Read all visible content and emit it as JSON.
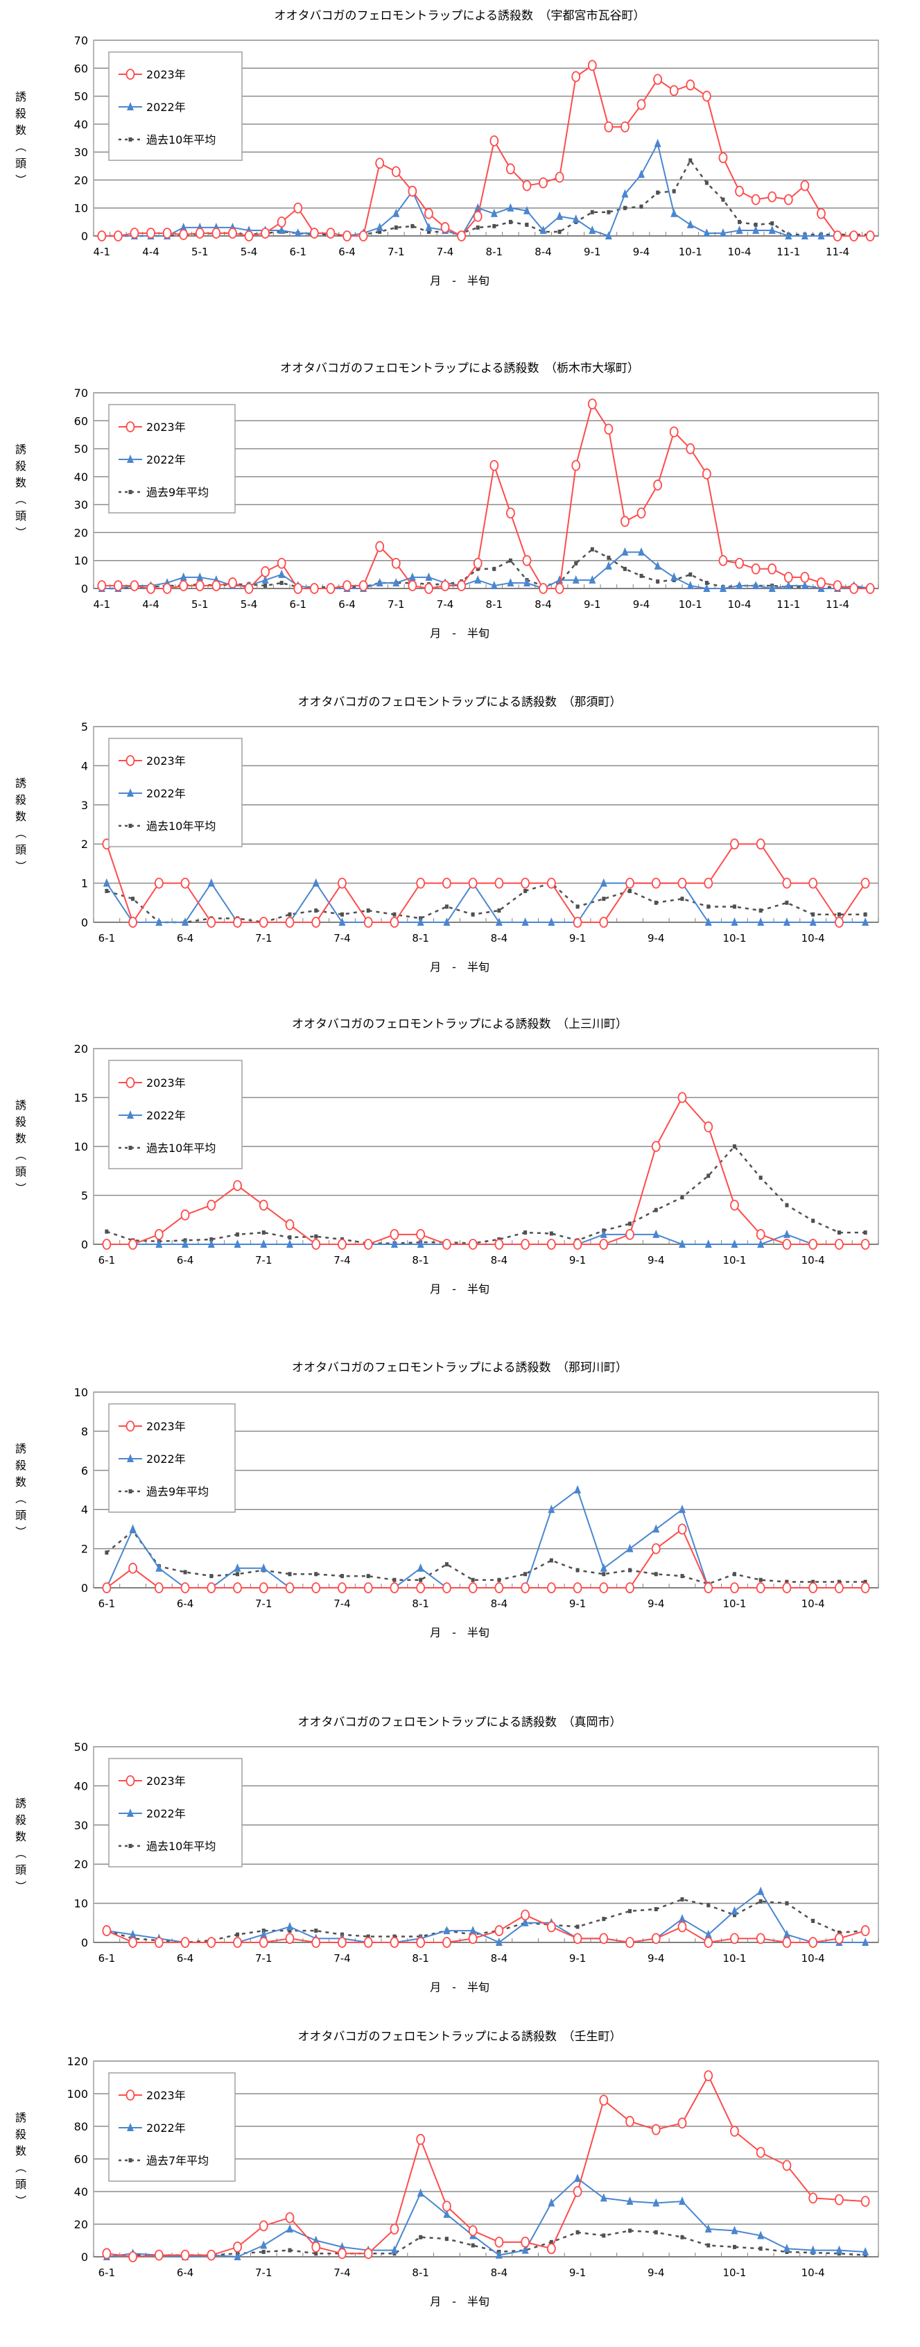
{
  "common": {
    "ylabel": "誘殺数（頭）",
    "xlabel": "月　-　半旬",
    "colors": {
      "y2023": "#ff4b4b",
      "y2022": "#4a86d0",
      "avg": "#505050",
      "grid": "#8c8c8c"
    }
  },
  "chart_data": [
    {
      "type": "line",
      "title": "オオタバコガのフェロモントラップによる誘殺数　（宇都宮市瓦谷町）",
      "xlabel": "月　-　半旬",
      "ylabel": "誘殺数（頭）",
      "ylim": [
        0,
        70
      ],
      "yticks": [
        0,
        10,
        20,
        30,
        40,
        50,
        60,
        70
      ],
      "legend_position": "top-left",
      "months": [
        4,
        5,
        6,
        7,
        8,
        9,
        10,
        11
      ],
      "tick_labels": [
        "4-1",
        "4-4",
        "5-1",
        "5-4",
        "6-1",
        "6-4",
        "7-1",
        "7-4",
        "8-1",
        "8-4",
        "9-1",
        "9-4",
        "10-1",
        "10-4",
        "11-1",
        "11-4"
      ],
      "series": [
        {
          "name": "2023年",
          "values": [
            0,
            0,
            1,
            1,
            1,
            0.5,
            1,
            1,
            1,
            0,
            1,
            5,
            10,
            1,
            1,
            0,
            0,
            26,
            23,
            16,
            8,
            3,
            0,
            7,
            34,
            24,
            18,
            19,
            21,
            57,
            61,
            39,
            39,
            47,
            56,
            52,
            54,
            50,
            28,
            16,
            13,
            14,
            13,
            18,
            8,
            0,
            0,
            0
          ]
        },
        {
          "name": "2022年",
          "values": [
            0,
            0,
            0,
            0,
            0,
            3,
            3,
            3,
            3,
            2,
            2,
            2,
            1,
            1,
            1,
            0,
            1,
            3,
            8,
            16,
            3,
            2,
            0,
            10,
            8,
            10,
            9,
            2,
            7,
            6,
            2,
            0,
            15,
            22,
            33,
            8,
            4,
            1,
            1,
            2,
            2,
            2,
            0,
            0,
            0,
            0,
            0,
            0
          ]
        },
        {
          "name": "過去10年平均",
          "values": [
            0,
            0,
            0,
            0,
            0,
            0.5,
            0.7,
            1,
            1,
            0.5,
            1,
            1.5,
            1,
            0.5,
            0.5,
            0,
            0.5,
            1.5,
            3,
            3.5,
            1.5,
            1.5,
            1,
            3,
            3.5,
            5,
            4,
            1.5,
            1.5,
            5,
            8.5,
            8.5,
            10,
            10.5,
            15.5,
            16,
            27,
            19,
            13,
            5,
            4,
            4.5,
            0.5,
            0.5,
            0.5,
            0.5,
            0.5,
            0.5
          ]
        }
      ]
    },
    {
      "type": "line",
      "title": "オオタバコガのフェロモントラップによる誘殺数　（栃木市大塚町）",
      "xlabel": "月　-　半旬",
      "ylabel": "誘殺数（頭）",
      "ylim": [
        0,
        70
      ],
      "yticks": [
        0,
        10,
        20,
        30,
        40,
        50,
        60,
        70
      ],
      "legend_position": "top-left",
      "months": [
        4,
        5,
        6,
        7,
        8,
        9,
        10,
        11
      ],
      "tick_labels": [
        "4-1",
        "4-4",
        "5-1",
        "5-4",
        "6-1",
        "6-4",
        "7-1",
        "7-4",
        "8-1",
        "8-4",
        "9-1",
        "9-4",
        "10-1",
        "10-4",
        "11-1",
        "11-4"
      ],
      "series": [
        {
          "name": "2023年",
          "values": [
            1,
            1,
            1,
            0,
            0,
            1,
            1,
            1,
            2,
            0,
            6,
            9,
            0,
            0,
            0,
            1,
            1,
            15,
            9,
            1,
            0,
            1,
            1,
            9,
            44,
            27,
            10,
            0,
            0,
            44,
            66,
            57,
            24,
            27,
            37,
            56,
            50,
            41,
            10,
            9,
            7,
            7,
            4,
            4,
            2,
            1,
            0,
            0
          ]
        },
        {
          "name": "2022年",
          "values": [
            0,
            0,
            1,
            1,
            2,
            4,
            4,
            3,
            1,
            1,
            3,
            5,
            1,
            0,
            0,
            0,
            0,
            2,
            2,
            4,
            4,
            2,
            1,
            3,
            1,
            2,
            2,
            0,
            3,
            3,
            3,
            8,
            13,
            13,
            8,
            4,
            1,
            0,
            0,
            1,
            1,
            0,
            1,
            1,
            0,
            0,
            1,
            0
          ]
        },
        {
          "name": "過去9年平均",
          "values": [
            0,
            0,
            0.5,
            0.5,
            1,
            1,
            1.5,
            1,
            1.5,
            1.5,
            1,
            2,
            0.5,
            0.5,
            0.5,
            0.5,
            0.5,
            2,
            2,
            2,
            1.5,
            1.5,
            2.5,
            7,
            7,
            10,
            3,
            1,
            2,
            9,
            14,
            11,
            7,
            4.5,
            2.5,
            3,
            5,
            2,
            0.5,
            1,
            1,
            1,
            0.5,
            0.5,
            0.5,
            0.5,
            0.5,
            0.5
          ]
        }
      ]
    },
    {
      "type": "line",
      "title": "オオタバコガのフェロモントラップによる誘殺数　（那須町）",
      "xlabel": "月　-　半旬",
      "ylabel": "誘殺数（頭）",
      "ylim": [
        0,
        5
      ],
      "yticks": [
        0,
        1,
        2,
        3,
        4,
        5
      ],
      "legend_position": "top-left",
      "months": [
        6,
        7,
        8,
        9,
        10
      ],
      "tick_labels": [
        "6-1",
        "6-4",
        "7-1",
        "7-4",
        "8-1",
        "8-4",
        "9-1",
        "9-4",
        "10-1",
        "10-4"
      ],
      "series": [
        {
          "name": "2023年",
          "values": [
            2,
            0,
            1,
            1,
            0,
            0,
            0,
            0,
            0,
            1,
            0,
            0,
            1,
            1,
            1,
            1,
            1,
            1,
            0,
            0,
            1,
            1,
            1,
            1,
            2,
            2,
            1,
            1,
            0,
            1
          ]
        },
        {
          "name": "2022年",
          "values": [
            1,
            0,
            0,
            0,
            1,
            0,
            0,
            0,
            1,
            0,
            0,
            0,
            0,
            0,
            1,
            0,
            0,
            0,
            0,
            1,
            1,
            1,
            1,
            0,
            0,
            0,
            0,
            0,
            0,
            0
          ]
        },
        {
          "name": "過去10年平均",
          "values": [
            0.8,
            0.6,
            0,
            0,
            0.1,
            0.1,
            0,
            0.2,
            0.3,
            0.2,
            0.3,
            0.2,
            0.1,
            0.4,
            0.2,
            0.3,
            0.8,
            1.0,
            0.4,
            0.6,
            0.8,
            0.5,
            0.6,
            0.4,
            0.4,
            0.3,
            0.5,
            0.2,
            0.2,
            0.2
          ]
        }
      ]
    },
    {
      "type": "line",
      "title": "オオタバコガのフェロモントラップによる誘殺数　（上三川町）",
      "xlabel": "月　-　半旬",
      "ylabel": "誘殺数（頭）",
      "ylim": [
        0,
        20
      ],
      "yticks": [
        0,
        5,
        10,
        15,
        20
      ],
      "legend_position": "top-left",
      "months": [
        6,
        7,
        8,
        9,
        10
      ],
      "tick_labels": [
        "6-1",
        "6-4",
        "7-1",
        "7-4",
        "8-1",
        "8-4",
        "9-1",
        "9-4",
        "10-1",
        "10-4"
      ],
      "series": [
        {
          "name": "2023年",
          "values": [
            0,
            0,
            1,
            3,
            4,
            6,
            4,
            2,
            0,
            0,
            0,
            1,
            1,
            0,
            0,
            0,
            0,
            0,
            0,
            0,
            1,
            10,
            15,
            12,
            4,
            1,
            0,
            0,
            0,
            0
          ]
        },
        {
          "name": "2022年",
          "values": [
            0,
            0,
            0,
            0,
            0,
            0,
            0,
            0,
            0,
            0,
            0,
            0,
            0,
            0,
            0,
            0,
            0,
            0,
            0,
            1,
            1,
            1,
            0,
            0,
            0,
            0,
            1,
            0,
            0,
            0
          ]
        },
        {
          "name": "過去10年平均",
          "values": [
            1.3,
            0.4,
            0.3,
            0.4,
            0.5,
            1.0,
            1.2,
            0.7,
            0.8,
            0.5,
            0.1,
            0.1,
            0.2,
            0.2,
            0.1,
            0.5,
            1.2,
            1.1,
            0.4,
            1.4,
            2.1,
            3.5,
            4.8,
            7.0,
            10.0,
            6.8,
            4.0,
            2.4,
            1.2,
            1.2
          ]
        }
      ]
    },
    {
      "type": "line",
      "title": "オオタバコガのフェロモントラップによる誘殺数　（那珂川町）",
      "xlabel": "月　-　半旬",
      "ylabel": "誘殺数（頭）",
      "ylim": [
        0,
        10
      ],
      "yticks": [
        0,
        2,
        4,
        6,
        8,
        10
      ],
      "legend_position": "top-left",
      "months": [
        6,
        7,
        8,
        9,
        10
      ],
      "tick_labels": [
        "6-1",
        "6-4",
        "7-1",
        "7-4",
        "8-1",
        "8-4",
        "9-1",
        "9-4",
        "10-1",
        "10-4"
      ],
      "series": [
        {
          "name": "2023年",
          "values": [
            0,
            1,
            0,
            0,
            0,
            0,
            0,
            0,
            0,
            0,
            0,
            0,
            0,
            0,
            0,
            0,
            0,
            0,
            0,
            0,
            0,
            2,
            3,
            0,
            0,
            0,
            0,
            0,
            0,
            0
          ]
        },
        {
          "name": "2022年",
          "values": [
            0,
            3,
            1,
            0,
            0,
            1,
            1,
            0,
            0,
            0,
            0,
            0,
            1,
            0,
            0,
            0,
            0,
            4,
            5,
            1,
            2,
            3,
            4,
            0,
            0,
            0,
            0,
            0,
            0,
            0
          ]
        },
        {
          "name": "過去9年平均",
          "values": [
            1.8,
            2.9,
            1.1,
            0.8,
            0.6,
            0.7,
            0.9,
            0.7,
            0.7,
            0.6,
            0.6,
            0.4,
            0.4,
            1.2,
            0.4,
            0.4,
            0.7,
            1.4,
            0.9,
            0.7,
            0.9,
            0.7,
            0.6,
            0.2,
            0.7,
            0.4,
            0.3,
            0.3,
            0.3,
            0.3
          ]
        }
      ]
    },
    {
      "type": "line",
      "title": "オオタバコガのフェロモントラップによる誘殺数　（真岡市）",
      "xlabel": "月　-　半旬",
      "ylabel": "誘殺数（頭）",
      "ylim": [
        0,
        50
      ],
      "yticks": [
        0,
        10,
        20,
        30,
        40,
        50
      ],
      "legend_position": "top-left",
      "months": [
        6,
        7,
        8,
        9,
        10
      ],
      "tick_labels": [
        "6-1",
        "6-4",
        "7-1",
        "7-4",
        "8-1",
        "8-4",
        "9-1",
        "9-4",
        "10-1",
        "10-4"
      ],
      "series": [
        {
          "name": "2023年",
          "values": [
            3,
            0,
            0,
            0,
            0,
            0,
            0,
            1,
            0,
            0,
            0,
            0,
            0,
            0,
            1,
            3,
            7,
            4,
            1,
            1,
            0,
            1,
            4,
            0,
            1,
            1,
            0,
            0,
            1,
            3
          ]
        },
        {
          "name": "2022年",
          "values": [
            3,
            2,
            1,
            0,
            0,
            0,
            2,
            4,
            1,
            1,
            0,
            0,
            1,
            3,
            3,
            0,
            5,
            5,
            1,
            1,
            0,
            1,
            6,
            2,
            8,
            13,
            2,
            0,
            0,
            0
          ]
        },
        {
          "name": "過去10年平均",
          "values": [
            3,
            1,
            0.5,
            0,
            0.5,
            2,
            3,
            3,
            3,
            2,
            1.5,
            1.5,
            1.5,
            3,
            2,
            3,
            5,
            4.5,
            4,
            6,
            8,
            8.5,
            11,
            9.5,
            7,
            10.5,
            10,
            5.5,
            2.5,
            3
          ]
        }
      ]
    },
    {
      "type": "line",
      "title": "オオタバコガのフェロモントラップによる誘殺数　（壬生町）",
      "xlabel": "月　-　半旬",
      "ylabel": "誘殺数（頭）",
      "ylim": [
        0,
        120
      ],
      "yticks": [
        0,
        20,
        40,
        60,
        80,
        100,
        120
      ],
      "legend_position": "top-left",
      "months": [
        6,
        7,
        8,
        9,
        10
      ],
      "tick_labels": [
        "6-1",
        "6-4",
        "7-1",
        "7-4",
        "8-1",
        "8-4",
        "9-1",
        "9-4",
        "10-1",
        "10-4"
      ],
      "series": [
        {
          "name": "2023年",
          "values": [
            2,
            0,
            1,
            1,
            1,
            6,
            19,
            24,
            6,
            2,
            2,
            17,
            72,
            31,
            16,
            9,
            9,
            5,
            40,
            96,
            83,
            78,
            82,
            111,
            77,
            64,
            56,
            36,
            35,
            34
          ]
        },
        {
          "name": "2022年",
          "values": [
            0,
            2,
            1,
            0,
            1,
            0,
            7,
            17,
            10,
            6,
            4,
            4,
            39,
            26,
            13,
            1,
            4,
            33,
            48,
            36,
            34,
            33,
            34,
            17,
            16,
            13,
            5,
            4,
            4,
            3
          ]
        },
        {
          "name": "過去7年平均",
          "values": [
            1,
            1,
            1,
            1,
            1,
            2,
            3,
            4,
            2,
            2,
            2,
            2,
            12,
            11,
            7,
            3,
            4,
            9,
            15,
            13,
            16,
            15,
            12,
            7,
            6,
            5,
            3,
            2.5,
            2,
            1
          ]
        }
      ]
    }
  ]
}
